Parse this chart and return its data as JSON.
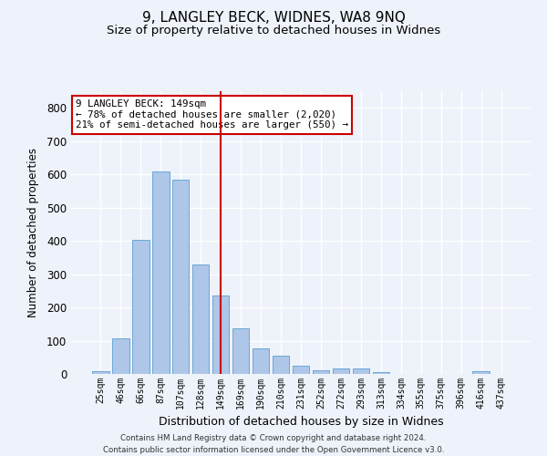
{
  "title": "9, LANGLEY BECK, WIDNES, WA8 9NQ",
  "subtitle": "Size of property relative to detached houses in Widnes",
  "xlabel": "Distribution of detached houses by size in Widnes",
  "ylabel": "Number of detached properties",
  "footer_line1": "Contains HM Land Registry data © Crown copyright and database right 2024.",
  "footer_line2": "Contains public sector information licensed under the Open Government Licence v3.0.",
  "categories": [
    "25sqm",
    "46sqm",
    "66sqm",
    "87sqm",
    "107sqm",
    "128sqm",
    "149sqm",
    "169sqm",
    "190sqm",
    "210sqm",
    "231sqm",
    "252sqm",
    "272sqm",
    "293sqm",
    "313sqm",
    "334sqm",
    "355sqm",
    "375sqm",
    "396sqm",
    "416sqm",
    "437sqm"
  ],
  "values": [
    7,
    107,
    402,
    610,
    583,
    328,
    237,
    137,
    77,
    54,
    26,
    12,
    16,
    16,
    5,
    0,
    0,
    0,
    0,
    7,
    0
  ],
  "bar_color": "#aec6e8",
  "bar_edge_color": "#5a9fd4",
  "highlight_index": 6,
  "highlight_color": "#cc0000",
  "ylim": [
    0,
    850
  ],
  "yticks": [
    0,
    100,
    200,
    300,
    400,
    500,
    600,
    700,
    800
  ],
  "property_label": "9 LANGLEY BECK: 149sqm",
  "annotation_line1": "← 78% of detached houses are smaller (2,020)",
  "annotation_line2": "21% of semi-detached houses are larger (550) →",
  "annotation_box_color": "#ffffff",
  "annotation_border_color": "#cc0000",
  "bg_color": "#eef2fa",
  "grid_color": "#ffffff",
  "title_fontsize": 11,
  "subtitle_fontsize": 9.5
}
